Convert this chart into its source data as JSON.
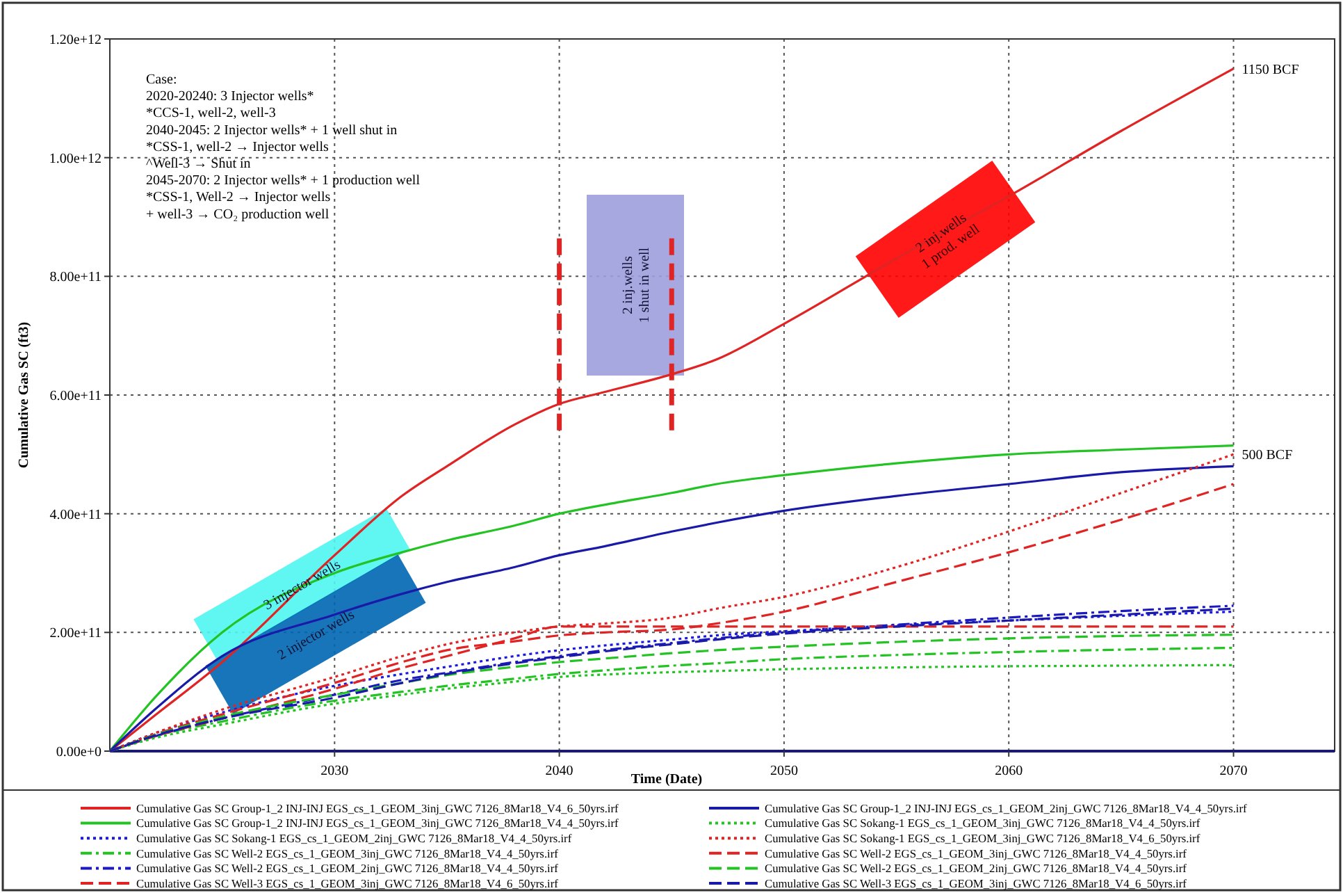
{
  "chart_data": {
    "type": "line",
    "xlabel": "Time (Date)",
    "ylabel": "Cumulative Gas SC (ft3)",
    "xlim": [
      2020,
      2074.5
    ],
    "xticks": [
      2030,
      2040,
      2050,
      2060,
      2070
    ],
    "ylim": [
      0,
      1200000000000.0
    ],
    "yticks": [
      {
        "value": 0,
        "label": "0.00e+0"
      },
      {
        "value": 200000000000.0,
        "label": "2.00e+11"
      },
      {
        "value": 400000000000.0,
        "label": "4.00e+11"
      },
      {
        "value": 600000000000.0,
        "label": "6.00e+11"
      },
      {
        "value": 800000000000.0,
        "label": "8.00e+11"
      },
      {
        "value": 1000000000000.0,
        "label": "1.00e+12"
      },
      {
        "value": 1200000000000.0,
        "label": "1.20e+12"
      }
    ],
    "grid": true,
    "legend": "bottom",
    "marker": "none",
    "x": [
      2020,
      2022,
      2025,
      2030,
      2033,
      2035,
      2038,
      2040,
      2042,
      2045,
      2047,
      2050,
      2055,
      2060,
      2065,
      2070
    ],
    "series": [
      {
        "name": "Cumulative Gas SC Group-1_2 INJ-INJ EGS_cs_1_GEOM_3inj_GWC 7126_8Mar18_V4_6_50yrs.irf",
        "color": "#e02424",
        "line_style": "solid",
        "values": [
          0,
          60000000000.0,
          150000000000.0,
          330000000000.0,
          430000000000.0,
          480000000000.0,
          550000000000.0,
          585000000000.0,
          605000000000.0,
          635000000000.0,
          660000000000.0,
          720000000000.0,
          830000000000.0,
          935000000000.0,
          1045000000000.0,
          1150000000000.0
        ]
      },
      {
        "name": "Cumulative Gas SC Group-1_2 INJ-INJ EGS_cs_1_GEOM_3inj_GWC 7126_8Mar18_V4_4_50yrs.irf",
        "color": "#22c322",
        "line_style": "solid",
        "values": [
          0,
          90000000000.0,
          200000000000.0,
          300000000000.0,
          335000000000.0,
          355000000000.0,
          380000000000.0,
          400000000000.0,
          415000000000.0,
          435000000000.0,
          450000000000.0,
          465000000000.0,
          485000000000.0,
          500000000000.0,
          508000000000.0,
          515000000000.0
        ]
      },
      {
        "name": "Cumulative Gas SC Sokang-1 EGS_cs_1_GEOM_2inj_GWC 7126_8Mar18_V4_4_50yrs.irf",
        "color": "#1a1ae0",
        "line_style": "dotted",
        "values": [
          0,
          30000000000.0,
          65000000000.0,
          110000000000.0,
          130000000000.0,
          142000000000.0,
          160000000000.0,
          170000000000.0,
          178000000000.0,
          188000000000.0,
          195000000000.0,
          202000000000.0,
          212000000000.0,
          220000000000.0,
          228000000000.0,
          235000000000.0
        ]
      },
      {
        "name": "Cumulative Gas SC Well-2 EGS_cs_1_GEOM_3inj_GWC 7126_8Mar18_V4_4_50yrs.irf",
        "color": "#22c322",
        "line_style": "dashdot",
        "values": [
          0,
          25000000000.0,
          50000000000.0,
          85000000000.0,
          100000000000.0,
          110000000000.0,
          122000000000.0,
          130000000000.0,
          136000000000.0,
          144000000000.0,
          148000000000.0,
          155000000000.0,
          162000000000.0,
          167000000000.0,
          171000000000.0,
          174000000000.0
        ]
      },
      {
        "name": "Cumulative Gas SC Well-2 EGS_cs_1_GEOM_2inj_GWC 7126_8Mar18_V4_4_50yrs.irf",
        "color": "#1a1ac0",
        "line_style": "dashdot",
        "values": [
          0,
          25000000000.0,
          55000000000.0,
          95000000000.0,
          120000000000.0,
          132000000000.0,
          150000000000.0,
          160000000000.0,
          170000000000.0,
          182000000000.0,
          190000000000.0,
          200000000000.0,
          213000000000.0,
          225000000000.0,
          236000000000.0,
          245000000000.0
        ]
      },
      {
        "name": "Cumulative Gas SC Well-3 EGS_cs_1_GEOM_3inj_GWC 7126_8Mar18_V4_6_50yrs.irf",
        "color": "#e02424",
        "line_style": "dashed",
        "values": [
          0,
          25000000000.0,
          55000000000.0,
          105000000000.0,
          140000000000.0,
          160000000000.0,
          190000000000.0,
          210000000000.0,
          210000000000.0,
          210000000000.0,
          210000000000.0,
          210000000000.0,
          210000000000.0,
          210000000000.0,
          210000000000.0,
          210000000000.0
        ]
      },
      {
        "name": "Cumulative Gas SC Group-1_2 INJ-INJ EGS_cs_1_GEOM_2inj_GWC 7126_8Mar18_V4_4_50yrs.irf",
        "color": "#1a1aa8",
        "line_style": "solid",
        "values": [
          0,
          70000000000.0,
          160000000000.0,
          230000000000.0,
          265000000000.0,
          285000000000.0,
          310000000000.0,
          330000000000.0,
          345000000000.0,
          370000000000.0,
          385000000000.0,
          405000000000.0,
          430000000000.0,
          450000000000.0,
          470000000000.0,
          480000000000.0
        ]
      },
      {
        "name": "Cumulative Gas SC Sokang-1 EGS_cs_1_GEOM_3inj_GWC 7126_8Mar18_V4_4_50yrs.irf",
        "color": "#22c322",
        "line_style": "dotted",
        "values": [
          0,
          22000000000.0,
          45000000000.0,
          80000000000.0,
          95000000000.0,
          105000000000.0,
          117000000000.0,
          125000000000.0,
          129000000000.0,
          133000000000.0,
          135000000000.0,
          138000000000.0,
          141000000000.0,
          143000000000.0,
          144000000000.0,
          145000000000.0
        ]
      },
      {
        "name": "Cumulative Gas SC Sokang-1 EGS_cs_1_GEOM_3inj_GWC 7126_8Mar18_V4_6_50yrs.irf",
        "color": "#e02424",
        "line_style": "dotted",
        "values": [
          0,
          30000000000.0,
          70000000000.0,
          125000000000.0,
          160000000000.0,
          180000000000.0,
          200000000000.0,
          210000000000.0,
          215000000000.0,
          225000000000.0,
          240000000000.0,
          260000000000.0,
          310000000000.0,
          370000000000.0,
          435000000000.0,
          500000000000.0
        ]
      },
      {
        "name": "Cumulative Gas SC Well-2 EGS_cs_1_GEOM_3inj_GWC 7126_8Mar18_V4_4_50yrs.irf",
        "color": "#e02424",
        "line_style": "dashed",
        "values": [
          0,
          28000000000.0,
          62000000000.0,
          115000000000.0,
          150000000000.0,
          170000000000.0,
          185000000000.0,
          195000000000.0,
          200000000000.0,
          205000000000.0,
          215000000000.0,
          235000000000.0,
          285000000000.0,
          335000000000.0,
          390000000000.0,
          450000000000.0
        ]
      },
      {
        "name": "Cumulative Gas SC Well-2 EGS_cs_1_GEOM_2inj_GWC 7126_8Mar18_V4_4_50yrs.irf",
        "color": "#22c322",
        "line_style": "dashed",
        "values": [
          0,
          27000000000.0,
          58000000000.0,
          95000000000.0,
          115000000000.0,
          128000000000.0,
          142000000000.0,
          150000000000.0,
          156000000000.0,
          165000000000.0,
          170000000000.0,
          176000000000.0,
          184000000000.0,
          190000000000.0,
          194000000000.0,
          196000000000.0
        ]
      },
      {
        "name": "Cumulative Gas SC Well-3 EGS_cs_1_GEOM_3inj_GWC 7126_8Mar18_V4_6_50yrs.irf",
        "color": "#1a1aa8",
        "line_style": "dashed",
        "values": [
          0,
          26000000000.0,
          55000000000.0,
          90000000000.0,
          115000000000.0,
          130000000000.0,
          148000000000.0,
          158000000000.0,
          168000000000.0,
          180000000000.0,
          188000000000.0,
          198000000000.0,
          210000000000.0,
          220000000000.0,
          230000000000.0,
          240000000000.0
        ]
      }
    ],
    "ref_lines": [
      {
        "axis": "x",
        "value": 2040,
        "color": "#e02424",
        "line_style": "dashed"
      },
      {
        "axis": "x",
        "value": 2045,
        "color": "#e02424",
        "line_style": "dashed"
      }
    ],
    "annotations": [
      "Case:\n2020-20240: 3 Injector wells*\n*CCS-1, well-2, well-3\n2040-2045: 2 Injector wells* + 1 well shut in\n*CSS-1, well-2 → Injector wells\n^Well-3 → Shut in\n2045-2070: 2 Injector wells* + 1 production well\n*CSS-1, Well-2 → Injector wells\n+ well-3 → CO₂ production well",
      {
        "text": "1150 BCF",
        "x": 2070,
        "y": 1150000000000.0
      },
      {
        "text": "500 BCF",
        "x": 2070,
        "y": 500000000000.0
      },
      "3 injector wells",
      "2 injector wells",
      "2 inj.wells\n1 shut in well",
      "2 inj.wells\n1 prod. well"
    ]
  }
}
